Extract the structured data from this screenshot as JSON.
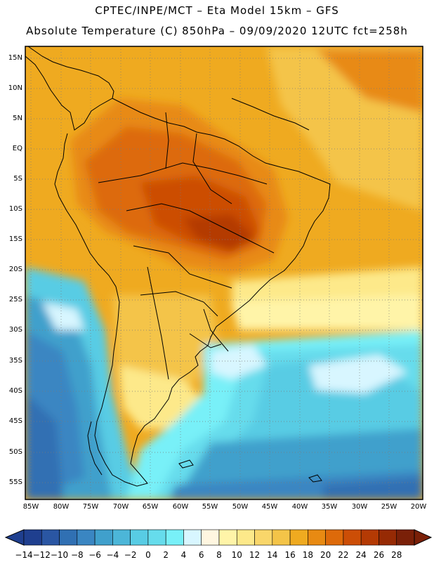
{
  "header": {
    "line1": "CPTEC/INPE/MCT –  Eta Model 15km – GFS",
    "line2": "Absolute Temperature (C) 850hPa – 09/09/2020 12UTC fct=258h"
  },
  "map": {
    "lat_labels": [
      "15N",
      "10N",
      "5N",
      "EQ",
      "5S",
      "10S",
      "15S",
      "20S",
      "25S",
      "30S",
      "35S",
      "40S",
      "45S",
      "50S",
      "55S"
    ],
    "lon_labels": [
      "85W",
      "80W",
      "75W",
      "70W",
      "65W",
      "60W",
      "55W",
      "50W",
      "45W",
      "40W",
      "35W",
      "30W",
      "25W",
      "20W"
    ]
  },
  "colorbar": {
    "labels": [
      "-14",
      "-12",
      "-10",
      "-8",
      "-6",
      "-4",
      "-2",
      "0",
      "2",
      "4",
      "6",
      "8",
      "10",
      "12",
      "14",
      "16",
      "18",
      "20",
      "22",
      "24",
      "26",
      "28"
    ],
    "colors": [
      "#1f3f8f",
      "#2a56a3",
      "#3070b3",
      "#3a86c2",
      "#40a0cc",
      "#4cb6d8",
      "#58cce4",
      "#66dcec",
      "#78f0f8",
      "#d8f6ff",
      "#fff6e0",
      "#fff4a8",
      "#fde98a",
      "#f9d66a",
      "#f4c448",
      "#efaa20",
      "#e88a12",
      "#dd6a0a",
      "#cc4e06",
      "#b43a04",
      "#962a04",
      "#7a2008"
    ]
  }
}
